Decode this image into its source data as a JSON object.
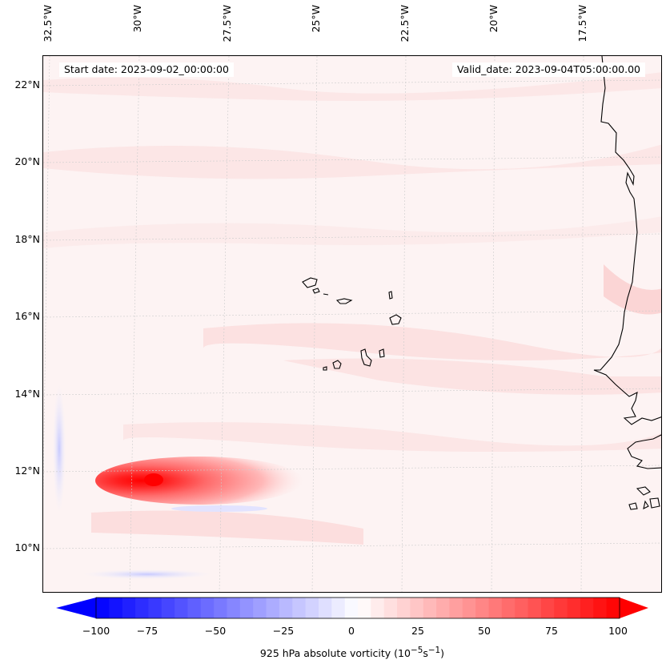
{
  "map": {
    "start_date": "Start date: 2023-09-02_00:00:00",
    "valid_date": "Valid_date: 2023-09-04T05:00:00.00",
    "lon_ticks": [
      "32.5°W",
      "30°W",
      "27.5°W",
      "25°W",
      "22.5°W",
      "20°W",
      "17.5°W"
    ],
    "lat_ticks": [
      "22°N",
      "20°N",
      "18°N",
      "16°N",
      "14°N",
      "12°N",
      "10°N"
    ],
    "vorticity_max_location": "≈11.8°N, 29.5°W",
    "colors": {
      "land_outline": "#000000",
      "background": "#fdf3f3",
      "positive": "#ff0000",
      "negative": "#0000ff"
    }
  },
  "colorbar": {
    "label_prefix": "925 hPa absolute vorticity (10",
    "label_exp1": "−5",
    "label_mid": "s",
    "label_exp2": "−1",
    "label_suffix": ")",
    "ticks": [
      "−100",
      "−75",
      "−50",
      "−25",
      "0",
      "25",
      "50",
      "75",
      "100"
    ],
    "range": [
      -100,
      100
    ],
    "levels": 40,
    "extend": "both",
    "cmap": "bwr"
  }
}
